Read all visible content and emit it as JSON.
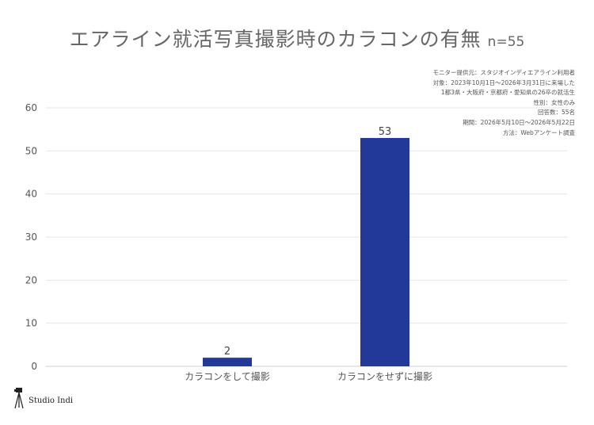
{
  "header": {
    "title": "エアライン就活写真撮影時のカラコンの有無",
    "sample_size": "n=55"
  },
  "notes": [
    "モニター提供元：スタジオインディエアライン利用者",
    "対象：2023年10月1日〜2026年3月31日に来場した",
    "1都3県・大阪府・京都府・愛知県の26卒の就活生",
    "性別：女性のみ",
    "回答数：55名",
    "期間：2026年5月10日〜2026年5月22日",
    "方法：Webアンケート調査"
  ],
  "brand": {
    "name": "Studio Indi",
    "icon": "camera-tripod-icon"
  },
  "colors": {
    "bar": "#22399a",
    "grid": "#e6e6e6",
    "axis_text": "#555555"
  },
  "chart_data": {
    "type": "bar",
    "title": "エアライン就活写真撮影時のカラコンの有無",
    "categories": [
      "カラコンをして撮影",
      "カラコンをせずに撮影"
    ],
    "values": [
      2,
      53
    ],
    "data_labels": [
      "2",
      "53"
    ],
    "ylim": [
      0,
      60
    ],
    "yticks": [
      0,
      10,
      20,
      30,
      40,
      50,
      60
    ],
    "xlabel": "",
    "ylabel": "",
    "grid": true,
    "legend": "none"
  }
}
